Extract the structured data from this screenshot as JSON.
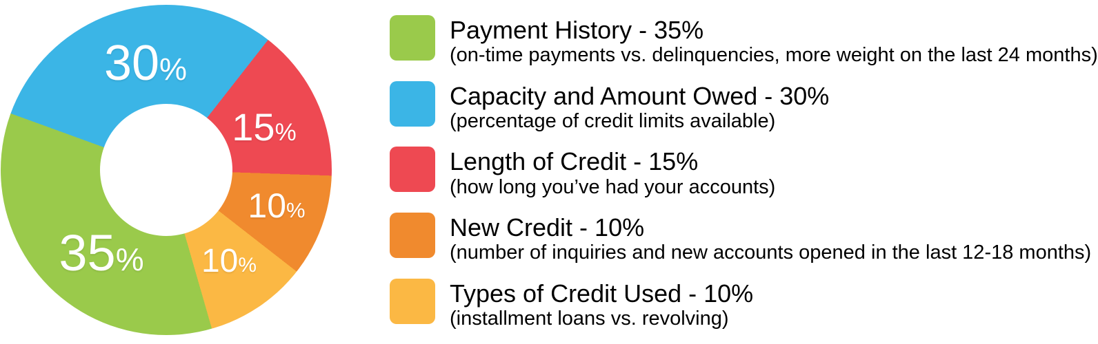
{
  "chart_data": {
    "type": "pie",
    "variant": "donut",
    "start_angle_deg": 164,
    "percent_symbol": "%",
    "legend_position": "right",
    "inner_radius_ratio": 0.4,
    "segments": [
      {
        "label": "Payment History",
        "value": 35,
        "display": "35",
        "color": "#9ACA4B"
      },
      {
        "label": "Capacity and Amount Owed",
        "value": 30,
        "display": "30",
        "color": "#3BB5E6"
      },
      {
        "label": "Length of Credit",
        "value": 15,
        "display": "15",
        "color": "#EE4952"
      },
      {
        "label": "New Credit",
        "value": 10,
        "display": "10",
        "color": "#F08A2E"
      },
      {
        "label": "Types of Credit Used",
        "value": 10,
        "display": "10",
        "color": "#FBB844"
      }
    ]
  },
  "legend": {
    "items": [
      {
        "title": "Payment History - 35%",
        "subtitle": "(on-time payments vs. delinquencies, more weight on the last 24 months)"
      },
      {
        "title": "Capacity and Amount Owed - 30%",
        "subtitle": "(percentage of credit limits available)"
      },
      {
        "title": "Length of Credit - 15%",
        "subtitle": "(how long you’ve had your accounts)"
      },
      {
        "title": "New Credit - 10%",
        "subtitle": "(number of inquiries and new accounts opened in the last 12-18 months)"
      },
      {
        "title": "Types of Credit Used - 10%",
        "subtitle": "(installment loans vs. revolving)"
      }
    ]
  }
}
